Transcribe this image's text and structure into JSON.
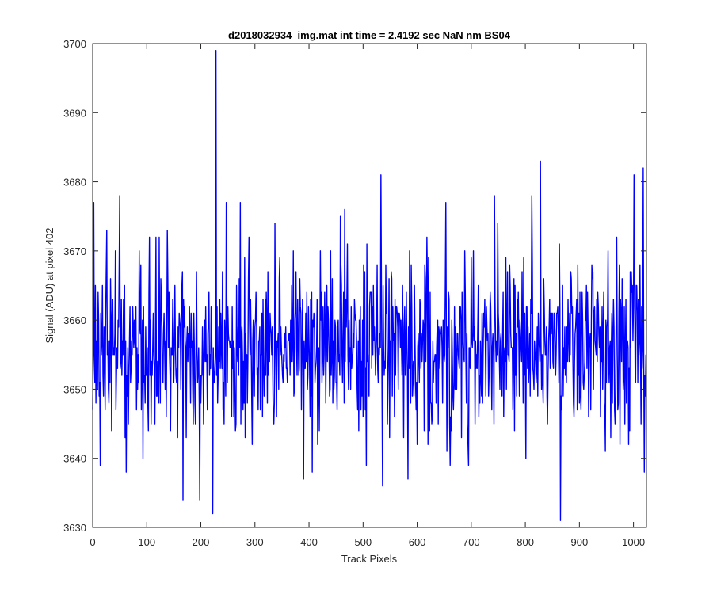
{
  "chart_data": {
    "type": "line",
    "title": "d2018032934_img.mat int time = 2.4192 sec  NaN nm BS04",
    "xlabel": "Track Pixels",
    "ylabel": "Signal (ADU) at pixel 402",
    "xlim": [
      0,
      1024
    ],
    "ylim": [
      3630,
      3700
    ],
    "xticks": [
      0,
      100,
      200,
      300,
      400,
      500,
      600,
      700,
      800,
      900,
      1000
    ],
    "xtick_labels": [
      "0",
      "100",
      "200",
      "300",
      "400",
      "500",
      "600",
      "700",
      "800",
      "900",
      "1000"
    ],
    "yticks": [
      3630,
      3640,
      3650,
      3660,
      3670,
      3680,
      3690,
      3700
    ],
    "ytick_labels": [
      "3630",
      "3640",
      "3650",
      "3660",
      "3670",
      "3680",
      "3690",
      "3700"
    ],
    "grid": false,
    "series": [
      {
        "color": "#0000ff",
        "n_points": 1024,
        "mean": 3656,
        "approx_std": 6.5,
        "notable_points": [
          {
            "x": 2,
            "y": 3677
          },
          {
            "x": 50,
            "y": 3678
          },
          {
            "x": 62,
            "y": 3638
          },
          {
            "x": 167,
            "y": 3634
          },
          {
            "x": 198,
            "y": 3634
          },
          {
            "x": 222,
            "y": 3632
          },
          {
            "x": 228,
            "y": 3699
          },
          {
            "x": 247,
            "y": 3677
          },
          {
            "x": 273,
            "y": 3677
          },
          {
            "x": 390,
            "y": 3637
          },
          {
            "x": 533,
            "y": 3681
          },
          {
            "x": 536,
            "y": 3636
          },
          {
            "x": 653,
            "y": 3677
          },
          {
            "x": 743,
            "y": 3678
          },
          {
            "x": 812,
            "y": 3678
          },
          {
            "x": 828,
            "y": 3683
          },
          {
            "x": 865,
            "y": 3631
          },
          {
            "x": 1001,
            "y": 3681
          },
          {
            "x": 1018,
            "y": 3682
          },
          {
            "x": 1020,
            "y": 3638
          }
        ]
      }
    ]
  }
}
